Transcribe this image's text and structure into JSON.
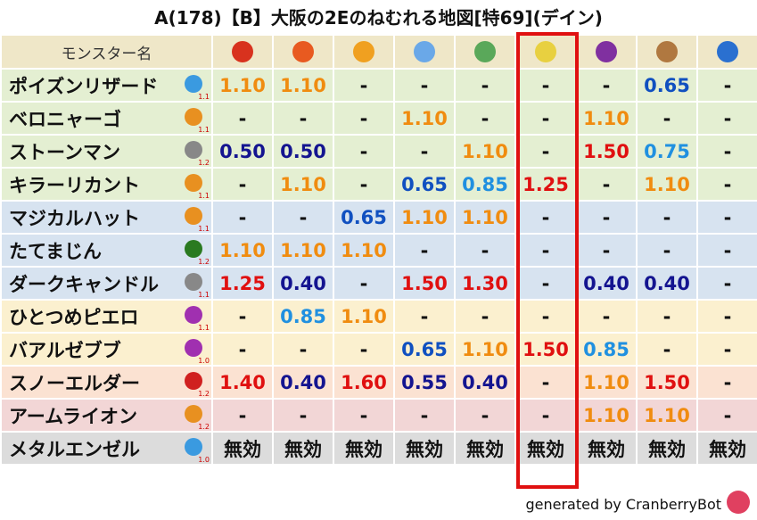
{
  "title": "A(178)【B】大阪の2Eのねむれる地図[特69](デイン)",
  "table": {
    "header": "モンスター名",
    "rows": [
      {
        "name": "ポイズンリザード",
        "scale": "1.1",
        "cells": [
          "1.10",
          "1.10",
          "-",
          "-",
          "-",
          "-",
          "-",
          "0.65",
          "-"
        ]
      },
      {
        "name": "ベロニャーゴ",
        "scale": "1.1",
        "cells": [
          "-",
          "-",
          "-",
          "1.10",
          "-",
          "-",
          "1.10",
          "-",
          "-"
        ]
      },
      {
        "name": "ストーンマン",
        "scale": "1.2",
        "cells": [
          "0.50",
          "0.50",
          "-",
          "-",
          "1.10",
          "-",
          "1.50",
          "0.75",
          "-"
        ]
      },
      {
        "name": "キラーリカント",
        "scale": "1.1",
        "cells": [
          "-",
          "1.10",
          "-",
          "0.65",
          "0.85",
          "1.25",
          "-",
          "1.10",
          "-"
        ]
      },
      {
        "name": "マジカルハット",
        "scale": "1.1",
        "cells": [
          "-",
          "-",
          "0.65",
          "1.10",
          "1.10",
          "-",
          "-",
          "-",
          "-"
        ]
      },
      {
        "name": "たてまじん",
        "scale": "1.2",
        "cells": [
          "1.10",
          "1.10",
          "1.10",
          "-",
          "-",
          "-",
          "-",
          "-",
          "-"
        ]
      },
      {
        "name": "ダークキャンドル",
        "scale": "1.1",
        "cells": [
          "1.25",
          "0.40",
          "-",
          "1.50",
          "1.30",
          "-",
          "0.40",
          "0.40",
          "-"
        ]
      },
      {
        "name": "ひとつめピエロ",
        "scale": "1.1",
        "cells": [
          "-",
          "0.85",
          "1.10",
          "-",
          "-",
          "-",
          "-",
          "-",
          "-"
        ]
      },
      {
        "name": "バアルゼブブ",
        "scale": "1.0",
        "cells": [
          "-",
          "-",
          "-",
          "0.65",
          "1.10",
          "1.50",
          "0.85",
          "-",
          "-"
        ]
      },
      {
        "name": "スノーエルダー",
        "scale": "1.2",
        "cells": [
          "1.40",
          "0.40",
          "1.60",
          "0.55",
          "0.40",
          "-",
          "1.10",
          "1.50",
          "-"
        ]
      },
      {
        "name": "アームライオン",
        "scale": "1.2",
        "cells": [
          "-",
          "-",
          "-",
          "-",
          "-",
          "-",
          "1.10",
          "1.10",
          "-"
        ]
      },
      {
        "name": "メタルエンゼル",
        "scale": "1.0",
        "cells": [
          "無効",
          "無効",
          "無効",
          "無効",
          "無効",
          "無効",
          "無効",
          "無効",
          "無効"
        ]
      }
    ]
  },
  "footer": "generated by CranberryBot"
}
